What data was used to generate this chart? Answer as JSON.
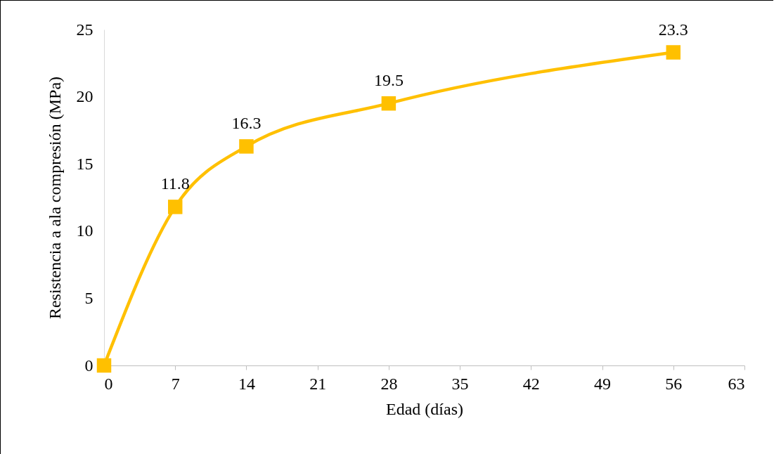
{
  "chart_data": {
    "type": "line",
    "xlabel": "Edad (días)",
    "ylabel": "Resistencia a ala compresión (MPa)",
    "x": [
      0,
      7,
      14,
      28,
      56
    ],
    "series": [
      {
        "color": "#ffc000",
        "values": [
          0,
          11.8,
          16.3,
          19.5,
          23.3
        ],
        "value_labels": [
          null,
          "11.8",
          "16.3",
          "19.5",
          "23.3"
        ]
      }
    ],
    "xlim": [
      0,
      63
    ],
    "xticks": [
      0,
      7,
      14,
      21,
      28,
      35,
      42,
      49,
      56,
      63
    ],
    "ylim": [
      0,
      25
    ],
    "yticks": [
      0,
      5,
      10,
      15,
      20,
      25
    ],
    "grid": false,
    "marker": "square",
    "line_style": "solid"
  }
}
